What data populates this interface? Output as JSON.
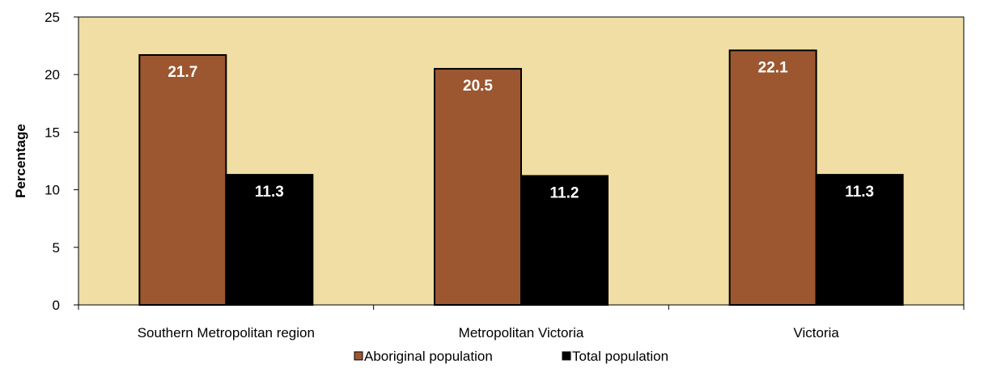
{
  "chart_data": {
    "type": "bar",
    "ylabel": "Percentage",
    "xlabel": "",
    "ylim": [
      0,
      25
    ],
    "yticks": [
      0,
      5,
      10,
      15,
      20,
      25
    ],
    "grid": false,
    "legend_position": "bottom",
    "plot_background": "#F0DEA4",
    "categories": [
      "Southern Metropolitan region",
      "Metropolitan Victoria",
      "Victoria"
    ],
    "series": [
      {
        "name": "Aboriginal population",
        "color": "#9C5731",
        "values": [
          21.7,
          20.5,
          22.1
        ],
        "labels": [
          "21.7",
          "20.5",
          "22.1"
        ]
      },
      {
        "name": "Total population",
        "color": "#000000",
        "values": [
          11.3,
          11.2,
          11.3
        ],
        "labels": [
          "11.3",
          "11.2",
          "11.3"
        ]
      }
    ]
  }
}
